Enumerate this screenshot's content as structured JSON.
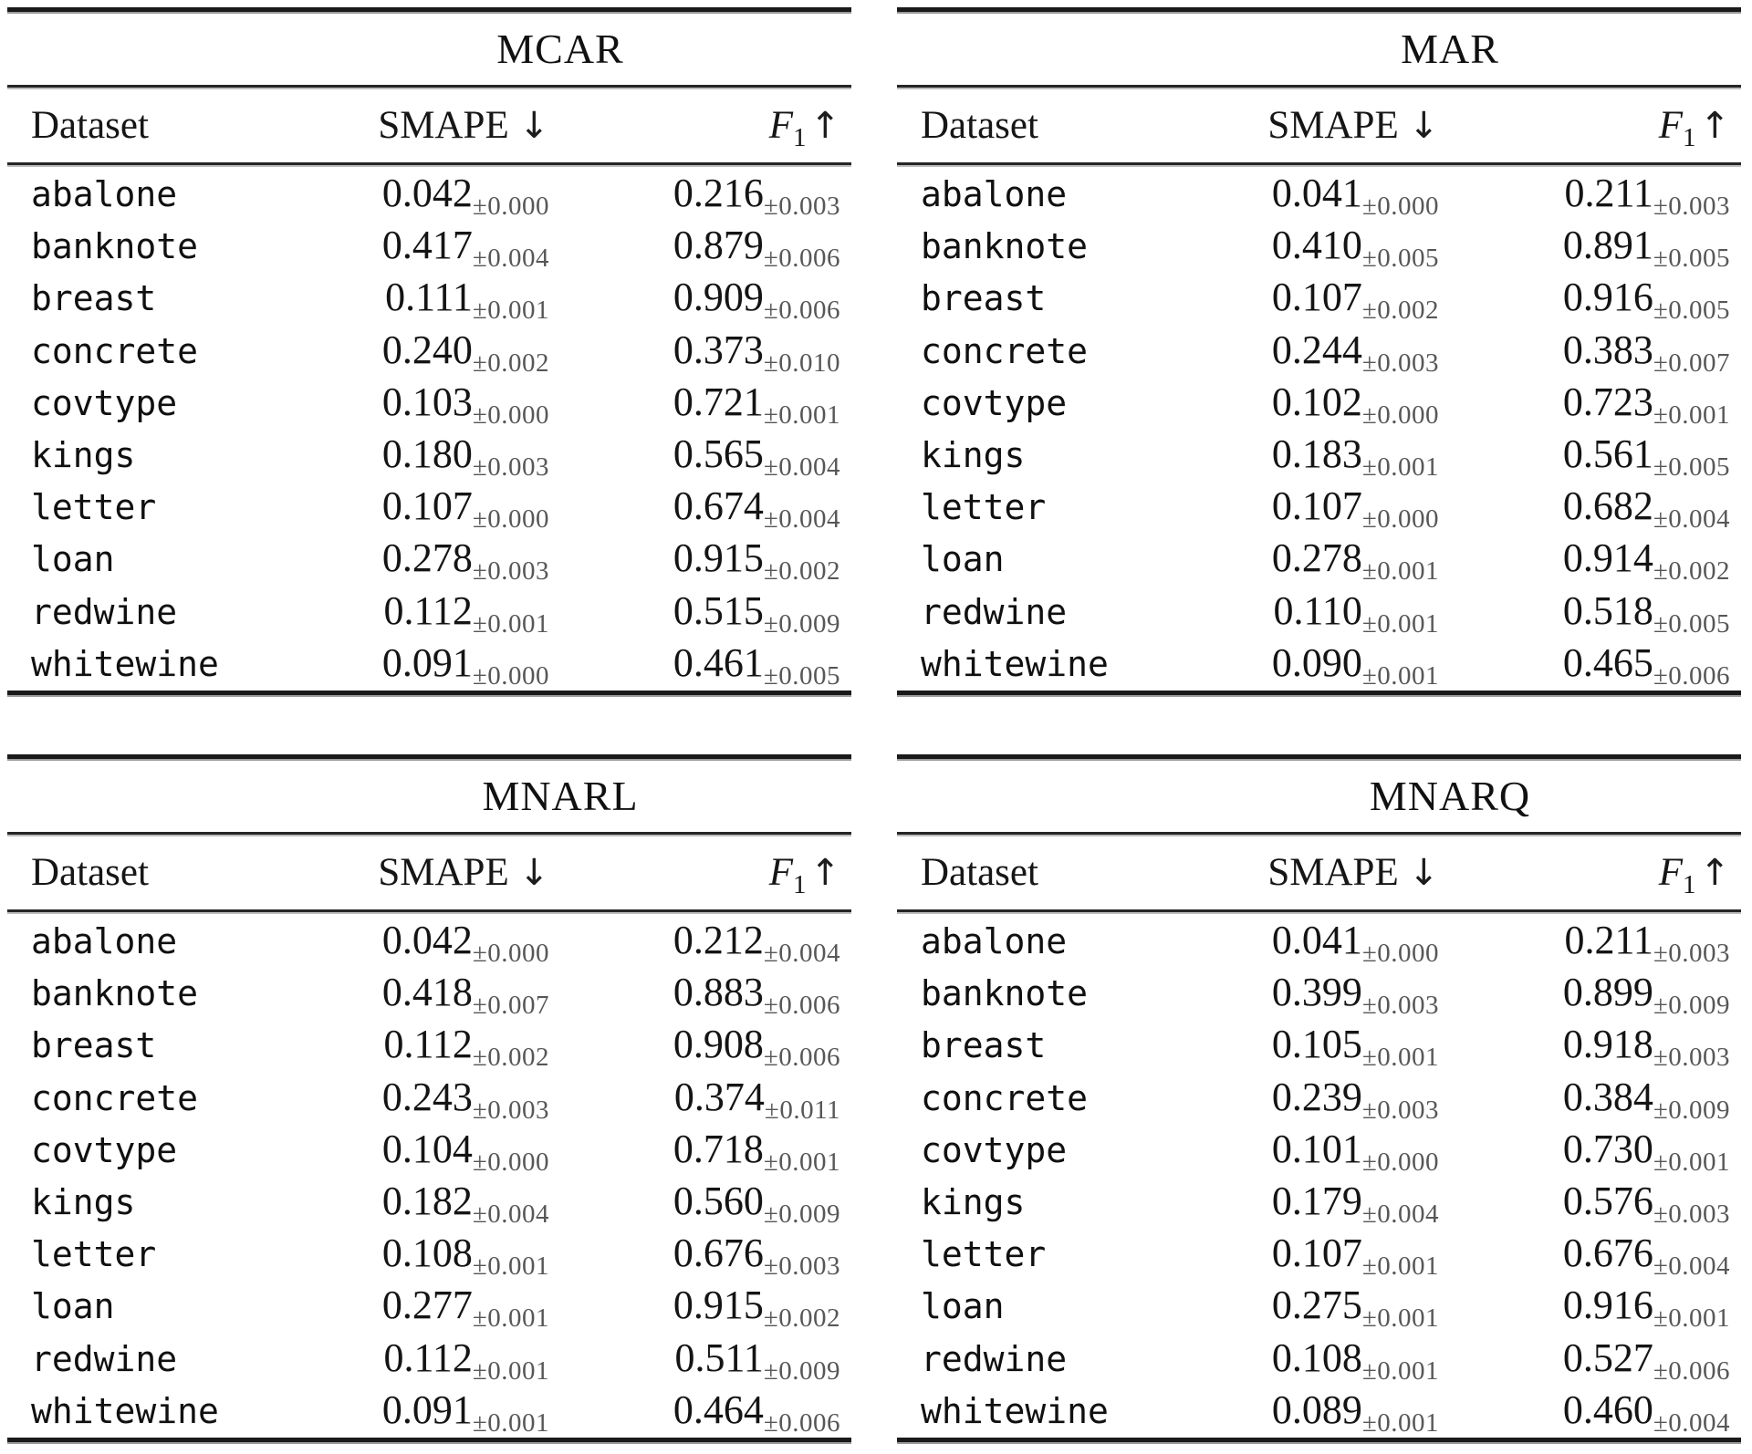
{
  "page": {
    "background": "#ffffff",
    "text_color": "#161616",
    "subscript_color": "#575757",
    "rule_color": "#1a1a1a"
  },
  "columns": {
    "dataset": "Dataset",
    "smape": "SMAPE",
    "down_arrow": "↓",
    "f1_base": "F",
    "f1_sub": "1",
    "up_arrow": "↑",
    "plus_minus": "±"
  },
  "tables": [
    {
      "title": "MCAR",
      "rows": [
        {
          "dataset": "abalone",
          "smape": "0.042",
          "smape_pm": "0.000",
          "f1": "0.216",
          "f1_pm": "0.003"
        },
        {
          "dataset": "banknote",
          "smape": "0.417",
          "smape_pm": "0.004",
          "f1": "0.879",
          "f1_pm": "0.006"
        },
        {
          "dataset": "breast",
          "smape": "0.111",
          "smape_pm": "0.001",
          "f1": "0.909",
          "f1_pm": "0.006"
        },
        {
          "dataset": "concrete",
          "smape": "0.240",
          "smape_pm": "0.002",
          "f1": "0.373",
          "f1_pm": "0.010"
        },
        {
          "dataset": "covtype",
          "smape": "0.103",
          "smape_pm": "0.000",
          "f1": "0.721",
          "f1_pm": "0.001"
        },
        {
          "dataset": "kings",
          "smape": "0.180",
          "smape_pm": "0.003",
          "f1": "0.565",
          "f1_pm": "0.004"
        },
        {
          "dataset": "letter",
          "smape": "0.107",
          "smape_pm": "0.000",
          "f1": "0.674",
          "f1_pm": "0.004"
        },
        {
          "dataset": "loan",
          "smape": "0.278",
          "smape_pm": "0.003",
          "f1": "0.915",
          "f1_pm": "0.002"
        },
        {
          "dataset": "redwine",
          "smape": "0.112",
          "smape_pm": "0.001",
          "f1": "0.515",
          "f1_pm": "0.009"
        },
        {
          "dataset": "whitewine",
          "smape": "0.091",
          "smape_pm": "0.000",
          "f1": "0.461",
          "f1_pm": "0.005"
        }
      ]
    },
    {
      "title": "MAR",
      "rows": [
        {
          "dataset": "abalone",
          "smape": "0.041",
          "smape_pm": "0.000",
          "f1": "0.211",
          "f1_pm": "0.003"
        },
        {
          "dataset": "banknote",
          "smape": "0.410",
          "smape_pm": "0.005",
          "f1": "0.891",
          "f1_pm": "0.005"
        },
        {
          "dataset": "breast",
          "smape": "0.107",
          "smape_pm": "0.002",
          "f1": "0.916",
          "f1_pm": "0.005"
        },
        {
          "dataset": "concrete",
          "smape": "0.244",
          "smape_pm": "0.003",
          "f1": "0.383",
          "f1_pm": "0.007"
        },
        {
          "dataset": "covtype",
          "smape": "0.102",
          "smape_pm": "0.000",
          "f1": "0.723",
          "f1_pm": "0.001"
        },
        {
          "dataset": "kings",
          "smape": "0.183",
          "smape_pm": "0.001",
          "f1": "0.561",
          "f1_pm": "0.005"
        },
        {
          "dataset": "letter",
          "smape": "0.107",
          "smape_pm": "0.000",
          "f1": "0.682",
          "f1_pm": "0.004"
        },
        {
          "dataset": "loan",
          "smape": "0.278",
          "smape_pm": "0.001",
          "f1": "0.914",
          "f1_pm": "0.002"
        },
        {
          "dataset": "redwine",
          "smape": "0.110",
          "smape_pm": "0.001",
          "f1": "0.518",
          "f1_pm": "0.005"
        },
        {
          "dataset": "whitewine",
          "smape": "0.090",
          "smape_pm": "0.001",
          "f1": "0.465",
          "f1_pm": "0.006"
        }
      ]
    },
    {
      "title": "MNARL",
      "rows": [
        {
          "dataset": "abalone",
          "smape": "0.042",
          "smape_pm": "0.000",
          "f1": "0.212",
          "f1_pm": "0.004"
        },
        {
          "dataset": "banknote",
          "smape": "0.418",
          "smape_pm": "0.007",
          "f1": "0.883",
          "f1_pm": "0.006"
        },
        {
          "dataset": "breast",
          "smape": "0.112",
          "smape_pm": "0.002",
          "f1": "0.908",
          "f1_pm": "0.006"
        },
        {
          "dataset": "concrete",
          "smape": "0.243",
          "smape_pm": "0.003",
          "f1": "0.374",
          "f1_pm": "0.011"
        },
        {
          "dataset": "covtype",
          "smape": "0.104",
          "smape_pm": "0.000",
          "f1": "0.718",
          "f1_pm": "0.001"
        },
        {
          "dataset": "kings",
          "smape": "0.182",
          "smape_pm": "0.004",
          "f1": "0.560",
          "f1_pm": "0.009"
        },
        {
          "dataset": "letter",
          "smape": "0.108",
          "smape_pm": "0.001",
          "f1": "0.676",
          "f1_pm": "0.003"
        },
        {
          "dataset": "loan",
          "smape": "0.277",
          "smape_pm": "0.001",
          "f1": "0.915",
          "f1_pm": "0.002"
        },
        {
          "dataset": "redwine",
          "smape": "0.112",
          "smape_pm": "0.001",
          "f1": "0.511",
          "f1_pm": "0.009"
        },
        {
          "dataset": "whitewine",
          "smape": "0.091",
          "smape_pm": "0.001",
          "f1": "0.464",
          "f1_pm": "0.006"
        }
      ]
    },
    {
      "title": "MNARQ",
      "rows": [
        {
          "dataset": "abalone",
          "smape": "0.041",
          "smape_pm": "0.000",
          "f1": "0.211",
          "f1_pm": "0.003"
        },
        {
          "dataset": "banknote",
          "smape": "0.399",
          "smape_pm": "0.003",
          "f1": "0.899",
          "f1_pm": "0.009"
        },
        {
          "dataset": "breast",
          "smape": "0.105",
          "smape_pm": "0.001",
          "f1": "0.918",
          "f1_pm": "0.003"
        },
        {
          "dataset": "concrete",
          "smape": "0.239",
          "smape_pm": "0.003",
          "f1": "0.384",
          "f1_pm": "0.009"
        },
        {
          "dataset": "covtype",
          "smape": "0.101",
          "smape_pm": "0.000",
          "f1": "0.730",
          "f1_pm": "0.001"
        },
        {
          "dataset": "kings",
          "smape": "0.179",
          "smape_pm": "0.004",
          "f1": "0.576",
          "f1_pm": "0.003"
        },
        {
          "dataset": "letter",
          "smape": "0.107",
          "smape_pm": "0.001",
          "f1": "0.676",
          "f1_pm": "0.004"
        },
        {
          "dataset": "loan",
          "smape": "0.275",
          "smape_pm": "0.001",
          "f1": "0.916",
          "f1_pm": "0.001"
        },
        {
          "dataset": "redwine",
          "smape": "0.108",
          "smape_pm": "0.001",
          "f1": "0.527",
          "f1_pm": "0.006"
        },
        {
          "dataset": "whitewine",
          "smape": "0.089",
          "smape_pm": "0.001",
          "f1": "0.460",
          "f1_pm": "0.004"
        }
      ]
    }
  ]
}
